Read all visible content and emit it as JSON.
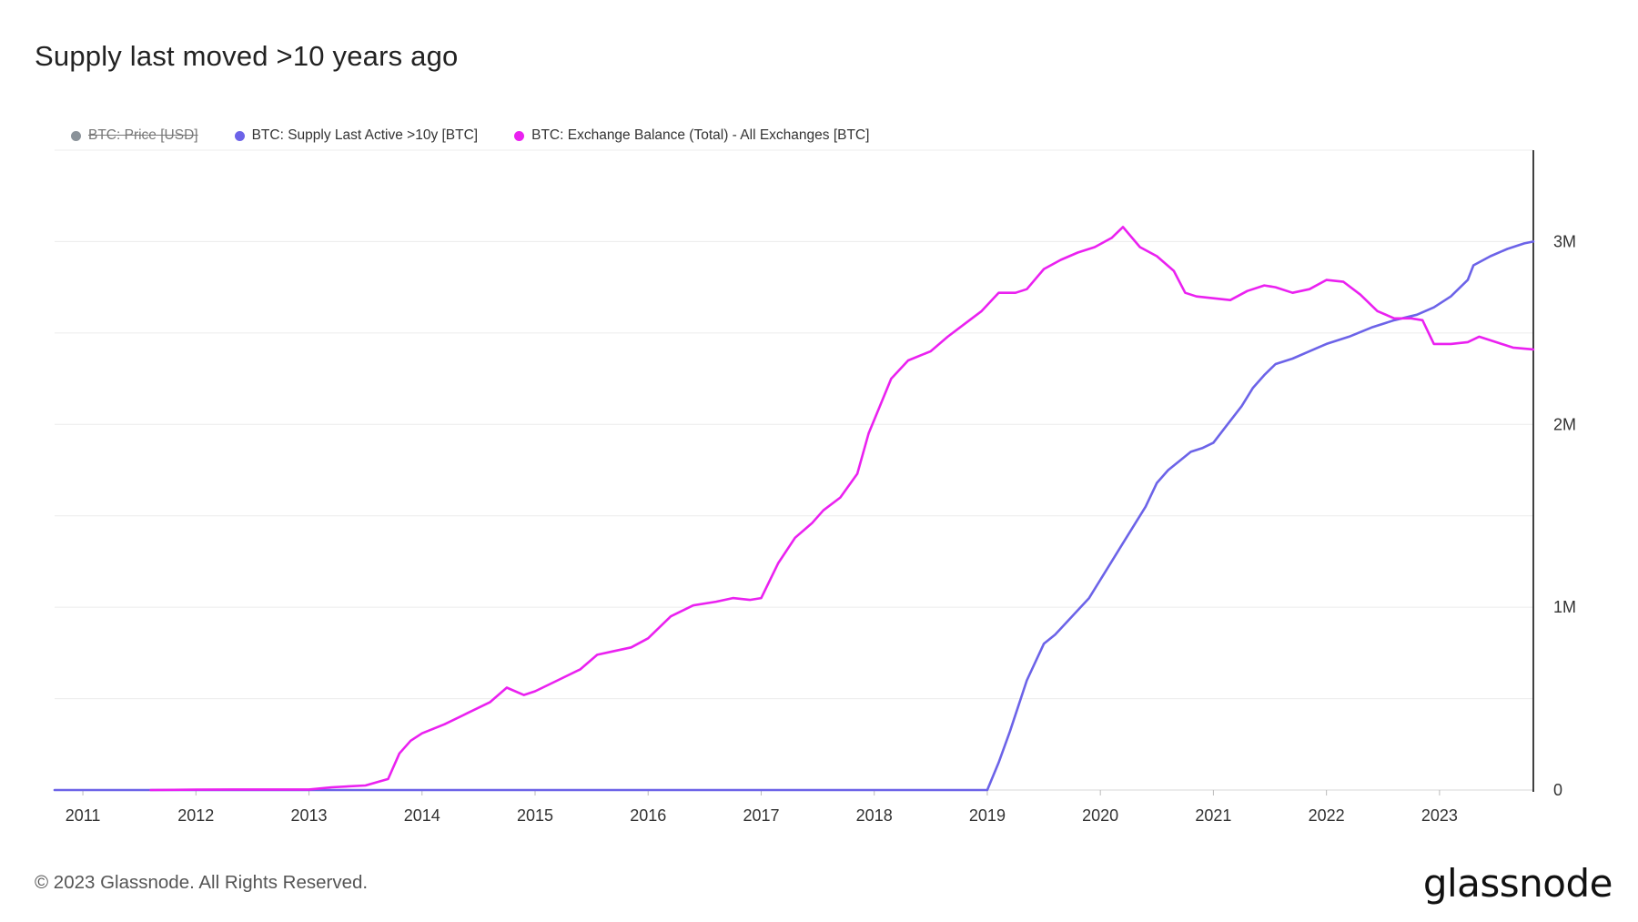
{
  "chart_data": {
    "type": "line",
    "title": "Supply last moved >10 years ago",
    "x_ticks": [
      "2011",
      "2012",
      "2013",
      "2014",
      "2015",
      "2016",
      "2017",
      "2018",
      "2019",
      "2020",
      "2021",
      "2022",
      "2023"
    ],
    "xlim": [
      2010.75,
      2023.83
    ],
    "ylim": [
      0,
      3500000
    ],
    "y_ticks": [
      {
        "value": 0,
        "label": "0"
      },
      {
        "value": 1000000,
        "label": "1M"
      },
      {
        "value": 2000000,
        "label": "2M"
      },
      {
        "value": 3000000,
        "label": "3M"
      }
    ],
    "gridlines": [
      0,
      500000,
      1000000,
      1500000,
      2000000,
      2500000,
      3000000,
      3500000
    ],
    "y_axis_position": "right",
    "legend_position": "top-left",
    "series": [
      {
        "name": "BTC: Price [USD]",
        "color": "#8a9299",
        "hidden": true,
        "x": [],
        "y": []
      },
      {
        "name": "BTC: Supply Last Active >10y [BTC]",
        "color": "#6c63e8",
        "x": [
          2010.75,
          2019.0,
          2019.1,
          2019.2,
          2019.35,
          2019.5,
          2019.6,
          2019.75,
          2019.9,
          2020.0,
          2020.1,
          2020.2,
          2020.3,
          2020.4,
          2020.5,
          2020.6,
          2020.7,
          2020.8,
          2020.9,
          2021.0,
          2021.1,
          2021.15,
          2021.25,
          2021.35,
          2021.45,
          2021.55,
          2021.7,
          2021.85,
          2022.0,
          2022.2,
          2022.4,
          2022.6,
          2022.8,
          2022.95,
          2023.1,
          2023.25,
          2023.3,
          2023.45,
          2023.6,
          2023.75,
          2023.83
        ],
        "y": [
          0,
          0,
          150000,
          320000,
          600000,
          800000,
          850000,
          950000,
          1050000,
          1150000,
          1250000,
          1350000,
          1450000,
          1550000,
          1680000,
          1750000,
          1800000,
          1850000,
          1870000,
          1900000,
          1980000,
          2020000,
          2100000,
          2200000,
          2270000,
          2330000,
          2360000,
          2400000,
          2440000,
          2480000,
          2530000,
          2570000,
          2600000,
          2640000,
          2700000,
          2790000,
          2870000,
          2920000,
          2960000,
          2990000,
          3000000
        ]
      },
      {
        "name": "BTC: Exchange Balance (Total) - All Exchanges [BTC]",
        "color": "#ea21f0",
        "x": [
          2011.6,
          2012.0,
          2012.5,
          2013.0,
          2013.2,
          2013.5,
          2013.7,
          2013.8,
          2013.9,
          2014.0,
          2014.2,
          2014.4,
          2014.6,
          2014.75,
          2014.9,
          2015.0,
          2015.2,
          2015.4,
          2015.55,
          2015.7,
          2015.85,
          2016.0,
          2016.2,
          2016.4,
          2016.6,
          2016.75,
          2016.9,
          2017.0,
          2017.15,
          2017.3,
          2017.45,
          2017.55,
          2017.7,
          2017.85,
          2017.95,
          2018.05,
          2018.15,
          2018.3,
          2018.5,
          2018.65,
          2018.8,
          2018.95,
          2019.1,
          2019.25,
          2019.35,
          2019.5,
          2019.65,
          2019.8,
          2019.95,
          2020.1,
          2020.2,
          2020.35,
          2020.5,
          2020.65,
          2020.75,
          2020.85,
          2021.0,
          2021.15,
          2021.3,
          2021.45,
          2021.55,
          2021.7,
          2021.85,
          2022.0,
          2022.15,
          2022.3,
          2022.45,
          2022.6,
          2022.75,
          2022.85,
          2022.95,
          2023.1,
          2023.25,
          2023.35,
          2023.5,
          2023.65,
          2023.83
        ],
        "y": [
          0,
          2000,
          3000,
          3000,
          15000,
          25000,
          60000,
          200000,
          270000,
          310000,
          360000,
          420000,
          480000,
          560000,
          520000,
          540000,
          600000,
          660000,
          740000,
          760000,
          780000,
          830000,
          950000,
          1010000,
          1030000,
          1050000,
          1040000,
          1050000,
          1240000,
          1380000,
          1460000,
          1530000,
          1600000,
          1730000,
          1950000,
          2100000,
          2250000,
          2350000,
          2400000,
          2480000,
          2550000,
          2620000,
          2720000,
          2720000,
          2740000,
          2850000,
          2900000,
          2940000,
          2970000,
          3020000,
          3080000,
          2970000,
          2920000,
          2840000,
          2720000,
          2700000,
          2690000,
          2680000,
          2730000,
          2760000,
          2750000,
          2720000,
          2740000,
          2790000,
          2780000,
          2710000,
          2620000,
          2580000,
          2580000,
          2570000,
          2440000,
          2440000,
          2450000,
          2480000,
          2450000,
          2420000,
          2410000
        ]
      }
    ]
  },
  "legend": [
    {
      "label": "BTC: Price [USD]",
      "color": "#8a9299",
      "disabled": true
    },
    {
      "label": "BTC: Supply Last Active >10y [BTC]",
      "color": "#6c63e8",
      "disabled": false
    },
    {
      "label": "BTC: Exchange Balance (Total) - All Exchanges [BTC]",
      "color": "#ea21f0",
      "disabled": false
    }
  ],
  "footer": "© 2023 Glassnode. All Rights Reserved.",
  "brand": "glassnode"
}
